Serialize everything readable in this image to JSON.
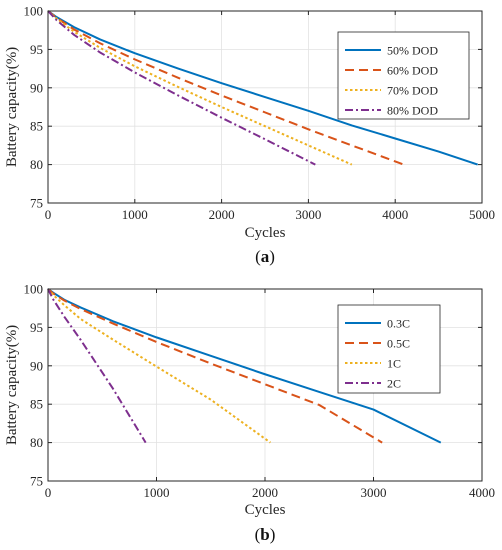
{
  "chart_data": [
    {
      "type": "line",
      "panel_label": "a",
      "xlabel": "Cycles",
      "ylabel": "Battery capacity(%)",
      "xlim": [
        0,
        5000
      ],
      "ylim": [
        75,
        100
      ],
      "xticks": [
        "0",
        "1000",
        "2000",
        "3000",
        "4000",
        "5000"
      ],
      "yticks": [
        "75",
        "80",
        "85",
        "90",
        "95",
        "100"
      ],
      "grid": true,
      "legend_position": "top-right",
      "series": [
        {
          "name": "50% DOD",
          "color": "#0072BD",
          "dash": "solid",
          "x": [
            0,
            100,
            300,
            600,
            1000,
            1500,
            2000,
            2500,
            3000,
            3500,
            4000,
            4500,
            4950
          ],
          "y": [
            100,
            99.2,
            97.9,
            96.3,
            94.5,
            92.5,
            90.6,
            88.8,
            87.0,
            85.1,
            83.4,
            81.7,
            80.0
          ]
        },
        {
          "name": "60% DOD",
          "color": "#D95319",
          "dash": "dashed",
          "x": [
            0,
            100,
            300,
            600,
            1000,
            1500,
            2000,
            2500,
            3000,
            3500,
            4100
          ],
          "y": [
            100,
            99.1,
            97.6,
            95.8,
            93.7,
            91.3,
            89.0,
            86.8,
            84.6,
            82.5,
            80.0
          ]
        },
        {
          "name": "70% DOD",
          "color": "#EDB120",
          "dash": "dotted",
          "x": [
            0,
            100,
            300,
            600,
            1000,
            1500,
            2000,
            2500,
            3000,
            3500
          ],
          "y": [
            100,
            99.0,
            97.3,
            95.2,
            92.8,
            90.1,
            87.5,
            85.0,
            82.5,
            80.0
          ]
        },
        {
          "name": "80% DOD",
          "color": "#7E2F8E",
          "dash": "dashdot",
          "x": [
            0,
            100,
            300,
            600,
            1000,
            1500,
            2000,
            2500,
            3080
          ],
          "y": [
            100,
            98.8,
            96.9,
            94.6,
            92.0,
            89.0,
            86.1,
            83.3,
            80.0
          ]
        }
      ]
    },
    {
      "type": "line",
      "panel_label": "b",
      "xlabel": "Cycles",
      "ylabel": "Battery capacity(%)",
      "xlim": [
        0,
        4000
      ],
      "ylim": [
        75,
        100
      ],
      "xticks": [
        "0",
        "1000",
        "2000",
        "3000",
        "4000"
      ],
      "yticks": [
        "75",
        "80",
        "85",
        "90",
        "95",
        "100"
      ],
      "grid": true,
      "legend_position": "top-right",
      "series": [
        {
          "name": "0.3C",
          "color": "#0072BD",
          "dash": "solid",
          "x": [
            0,
            50,
            150,
            300,
            600,
            1000,
            1500,
            2000,
            2500,
            3000,
            3620
          ],
          "y": [
            100,
            99.5,
            98.6,
            97.6,
            95.8,
            93.7,
            91.3,
            88.9,
            86.6,
            84.3,
            80.0
          ]
        },
        {
          "name": "0.5C",
          "color": "#D95319",
          "dash": "dashed",
          "x": [
            0,
            50,
            150,
            300,
            600,
            1000,
            1500,
            2000,
            2500,
            3080
          ],
          "y": [
            100,
            99.4,
            98.5,
            97.4,
            95.5,
            93.1,
            90.3,
            87.6,
            84.9,
            80.0
          ]
        },
        {
          "name": "1C",
          "color": "#EDB120",
          "dash": "dotted",
          "x": [
            0,
            50,
            150,
            300,
            600,
            1000,
            1500,
            2050
          ],
          "y": [
            100,
            99.2,
            97.9,
            96.1,
            93.4,
            89.9,
            85.6,
            80.0
          ]
        },
        {
          "name": "2C",
          "color": "#7E2F8E",
          "dash": "dashdot",
          "x": [
            0,
            50,
            150,
            300,
            600,
            900
          ],
          "y": [
            100,
            98.6,
            96.4,
            93.4,
            87.0,
            80.0
          ]
        }
      ]
    }
  ]
}
